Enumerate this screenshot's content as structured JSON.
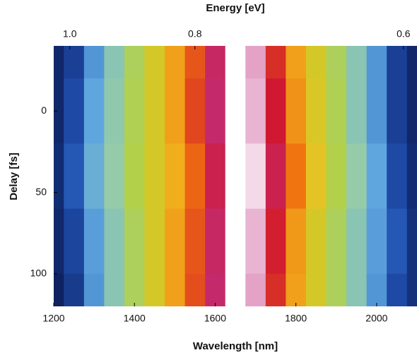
{
  "chart_data": {
    "type": "heatmap",
    "title": "Energy [eV]",
    "x_label": "Wavelength [nm]",
    "y_label": "Delay [fs]",
    "x": [
      1200,
      1250,
      1300,
      1350,
      1400,
      1450,
      1500,
      1550,
      1600,
      1650,
      1700,
      1750,
      1800,
      1850,
      1900,
      1950,
      2000,
      2050,
      2100
    ],
    "y": [
      -40,
      0,
      40,
      80,
      120
    ],
    "z": [
      [
        0.03,
        0.08,
        0.2,
        0.3,
        0.4,
        0.5,
        0.6,
        0.7,
        0.85,
        1.0,
        0.95,
        0.75,
        0.6,
        0.5,
        0.4,
        0.3,
        0.2,
        0.08,
        0.03
      ],
      [
        0.03,
        0.1,
        0.22,
        0.31,
        0.41,
        0.5,
        0.6,
        0.72,
        0.86,
        1.0,
        0.96,
        0.78,
        0.62,
        0.51,
        0.41,
        0.3,
        0.2,
        0.08,
        0.03
      ],
      [
        0.04,
        0.12,
        0.24,
        0.32,
        0.42,
        0.5,
        0.58,
        0.68,
        0.82,
        1.0,
        0.98,
        0.82,
        0.66,
        0.53,
        0.42,
        0.32,
        0.22,
        0.1,
        0.04
      ],
      [
        0.03,
        0.09,
        0.21,
        0.3,
        0.4,
        0.5,
        0.6,
        0.7,
        0.85,
        1.0,
        0.96,
        0.77,
        0.61,
        0.5,
        0.4,
        0.3,
        0.21,
        0.12,
        0.05
      ],
      [
        0.02,
        0.07,
        0.2,
        0.3,
        0.4,
        0.5,
        0.6,
        0.71,
        0.86,
        1.0,
        0.95,
        0.75,
        0.6,
        0.5,
        0.4,
        0.3,
        0.2,
        0.1,
        0.05
      ]
    ],
    "colorscale": [
      "#0a1850",
      "#2050b0",
      "#60a8e0",
      "#9cd0a0",
      "#b8d030",
      "#f0c020",
      "#f07010",
      "#d01830",
      "#c03080",
      "#ffffff"
    ],
    "xlim": [
      1200,
      2100
    ],
    "xticks": [
      1200,
      1400,
      1600,
      1800,
      2000
    ],
    "ylim": [
      -40,
      120
    ],
    "yticks": [
      0,
      50,
      100
    ],
    "y_inverted": true,
    "x2ticks": [
      {
        "value": 1.0,
        "label": "1.0"
      },
      0.8,
      0.6
    ]
  }
}
